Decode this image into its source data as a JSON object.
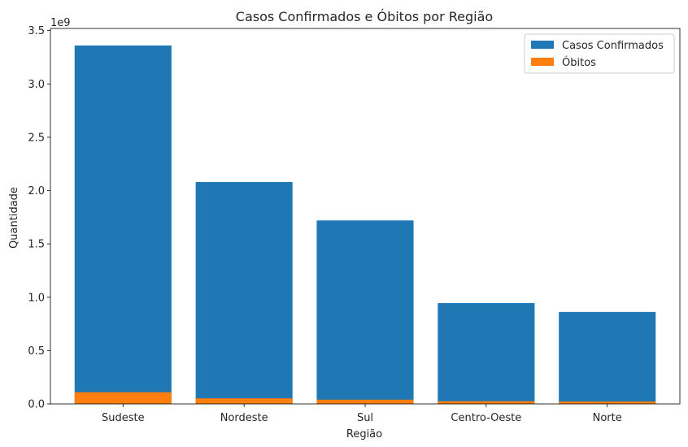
{
  "chart_data": {
    "type": "bar",
    "title": "Casos Confirmados e Óbitos por Região",
    "xlabel": "Região",
    "ylabel": "Quantidade",
    "y_offset_label": "1e9",
    "y_scale": 1000000000,
    "ylim": [
      0,
      3.52
    ],
    "yticks": [
      0.0,
      0.5,
      1.0,
      1.5,
      2.0,
      2.5,
      3.0,
      3.5
    ],
    "ytick_labels": [
      "0.0",
      "0.5",
      "1.0",
      "1.5",
      "2.0",
      "2.5",
      "3.0",
      "3.5"
    ],
    "categories": [
      "Sudeste",
      "Nordeste",
      "Sul",
      "Centro-Oeste",
      "Norte"
    ],
    "series": [
      {
        "name": "Casos Confirmados",
        "color": "#1f77b4",
        "values": [
          3.36,
          2.08,
          1.72,
          0.945,
          0.862
        ]
      },
      {
        "name": "Óbitos",
        "color": "#ff7f0e",
        "values": [
          0.11,
          0.052,
          0.04,
          0.025,
          0.022
        ]
      }
    ],
    "legend": "top-right",
    "grid": false
  }
}
